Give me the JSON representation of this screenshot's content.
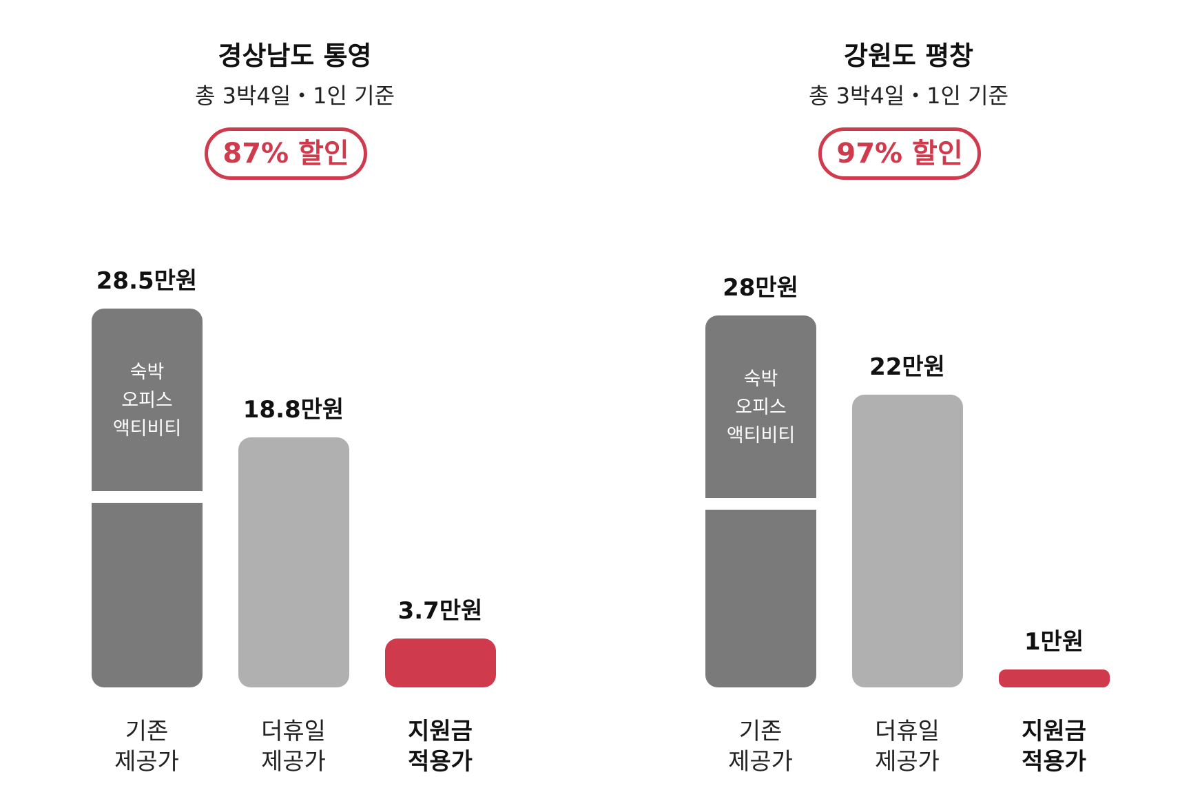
{
  "colors": {
    "base": "#7a7a7a",
    "holiday": "#b0b0b0",
    "subsidy": "#cf3a4c"
  },
  "chart_data": [
    {
      "type": "bar",
      "title": "경상남도 통영",
      "subtitle": "총 3박4일・1인 기준",
      "badge": "87% 할인",
      "categories": [
        [
          "기존",
          "제공가"
        ],
        [
          "더휴일",
          "제공가"
        ],
        [
          "지원금",
          "적용가"
        ]
      ],
      "values": [
        28.5,
        18.8,
        3.7
      ],
      "value_labels": [
        "28.5만원",
        "18.8만원",
        "3.7만원"
      ],
      "segment_text": [
        "숙박",
        "오피스",
        "액티비티"
      ],
      "ylim": [
        0,
        28.5
      ]
    },
    {
      "type": "bar",
      "title": "강원도 평창",
      "subtitle": "총 3박4일・1인 기준",
      "badge": "97% 할인",
      "categories": [
        [
          "기존",
          "제공가"
        ],
        [
          "더휴일",
          "제공가"
        ],
        [
          "지원금",
          "적용가"
        ]
      ],
      "values": [
        28,
        22,
        1
      ],
      "value_labels": [
        "28만원",
        "22만원",
        "1만원"
      ],
      "segment_text": [
        "숙박",
        "오피스",
        "액티비티"
      ],
      "ylim": [
        0,
        28.5
      ]
    }
  ]
}
